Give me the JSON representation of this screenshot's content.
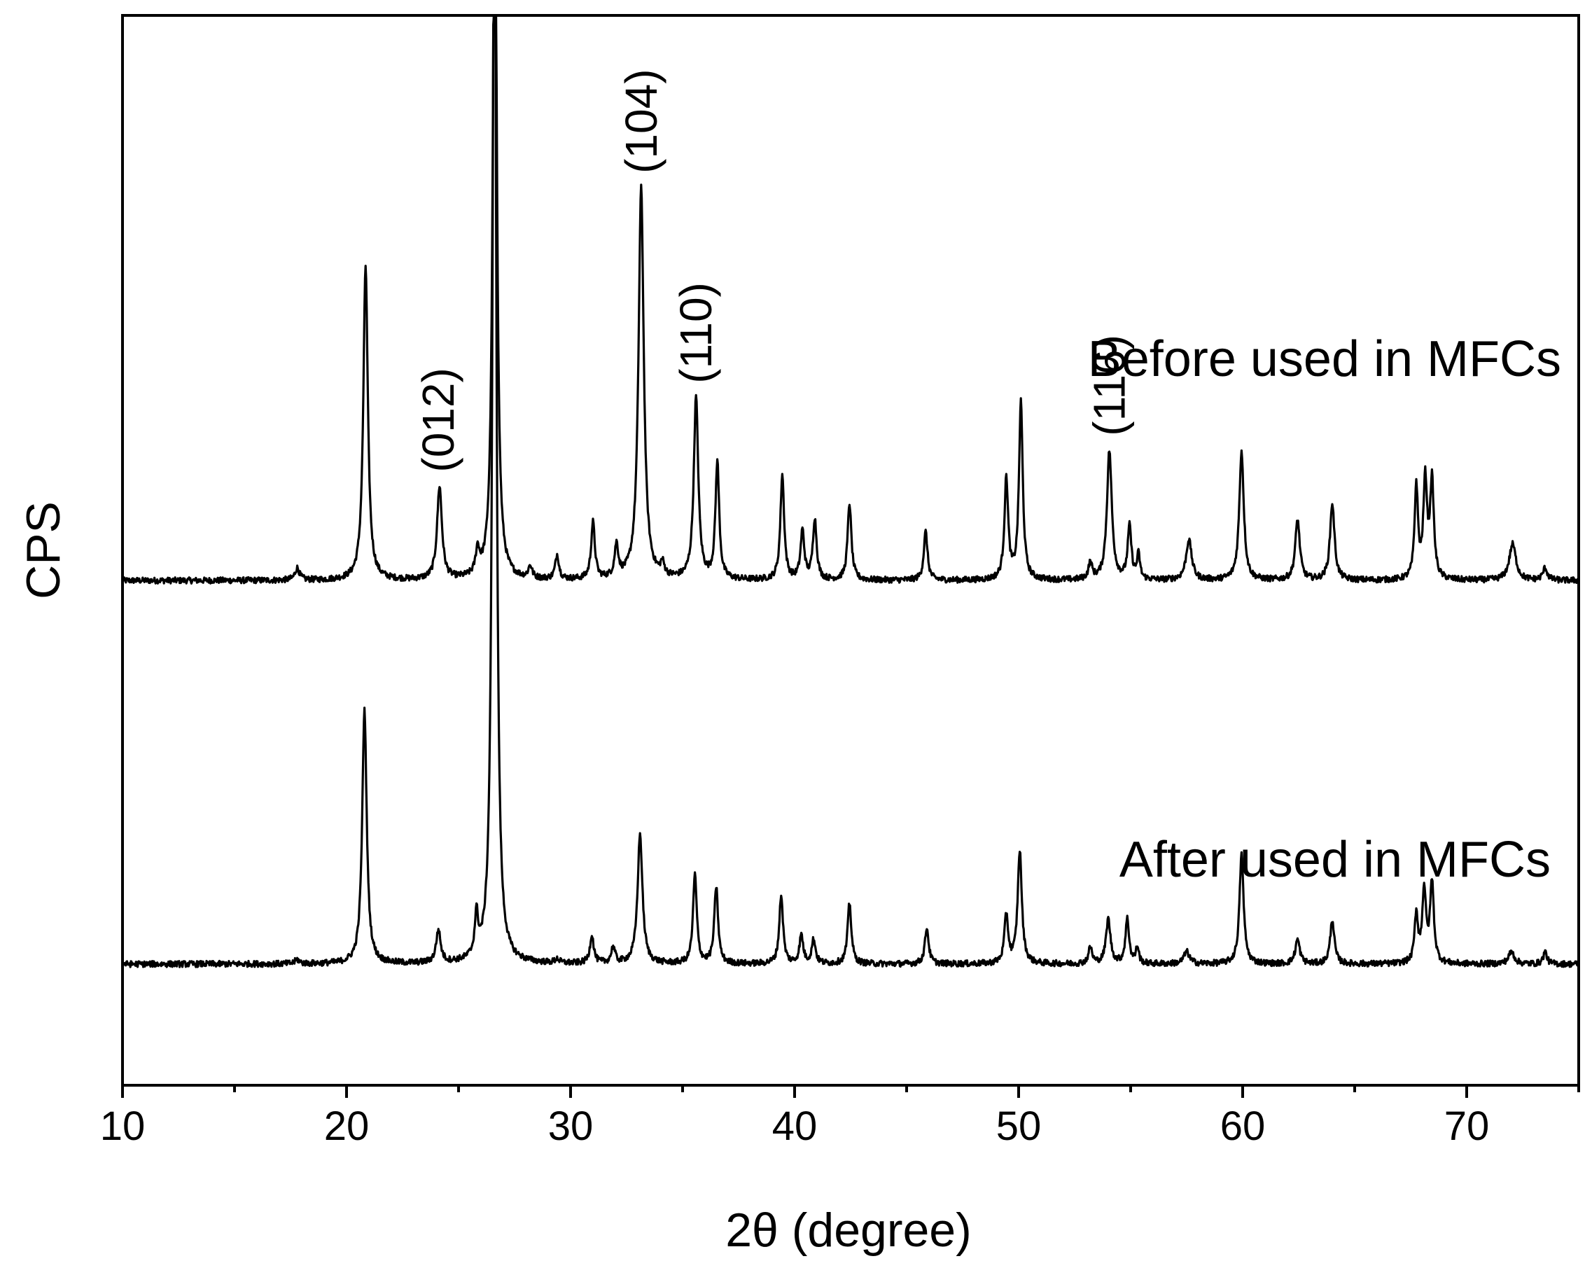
{
  "chart_data": {
    "type": "line",
    "xlabel": "2θ (degree)",
    "ylabel": "CPS",
    "xlim": [
      10,
      75
    ],
    "ylim": [
      -0.3,
      2.35
    ],
    "x_ticks": [
      10,
      20,
      30,
      40,
      50,
      60,
      70
    ],
    "x_minor_step": 5,
    "y_ticks_shown": false,
    "grid": false,
    "legend": "none",
    "series": [
      {
        "name": "Before used in MFCs",
        "offset": 0.95,
        "baseline": 0.0,
        "peaks": [
          {
            "x": 17.8,
            "h": 0.03,
            "w": 0.12
          },
          {
            "x": 20.85,
            "h": 0.78,
            "w": 0.12
          },
          {
            "x": 24.15,
            "h": 0.23,
            "w": 0.13
          },
          {
            "x": 25.85,
            "h": 0.06,
            "w": 0.1
          },
          {
            "x": 26.62,
            "h": 2.0,
            "w": 0.1
          },
          {
            "x": 28.2,
            "h": 0.03,
            "w": 0.1
          },
          {
            "x": 29.4,
            "h": 0.06,
            "w": 0.1
          },
          {
            "x": 31.0,
            "h": 0.14,
            "w": 0.1
          },
          {
            "x": 32.05,
            "h": 0.08,
            "w": 0.1
          },
          {
            "x": 33.15,
            "h": 0.97,
            "w": 0.14
          },
          {
            "x": 34.1,
            "h": 0.03,
            "w": 0.1
          },
          {
            "x": 35.6,
            "h": 0.45,
            "w": 0.12
          },
          {
            "x": 36.55,
            "h": 0.29,
            "w": 0.1
          },
          {
            "x": 39.45,
            "h": 0.26,
            "w": 0.1
          },
          {
            "x": 40.35,
            "h": 0.12,
            "w": 0.1
          },
          {
            "x": 40.9,
            "h": 0.15,
            "w": 0.1
          },
          {
            "x": 42.45,
            "h": 0.19,
            "w": 0.1
          },
          {
            "x": 45.85,
            "h": 0.12,
            "w": 0.1
          },
          {
            "x": 49.45,
            "h": 0.25,
            "w": 0.1
          },
          {
            "x": 50.1,
            "h": 0.44,
            "w": 0.1
          },
          {
            "x": 53.2,
            "h": 0.04,
            "w": 0.1
          },
          {
            "x": 54.05,
            "h": 0.32,
            "w": 0.13
          },
          {
            "x": 54.95,
            "h": 0.13,
            "w": 0.1
          },
          {
            "x": 55.35,
            "h": 0.06,
            "w": 0.08
          },
          {
            "x": 57.6,
            "h": 0.1,
            "w": 0.15
          },
          {
            "x": 59.95,
            "h": 0.32,
            "w": 0.12
          },
          {
            "x": 62.45,
            "h": 0.15,
            "w": 0.12
          },
          {
            "x": 64.0,
            "h": 0.19,
            "w": 0.12
          },
          {
            "x": 67.75,
            "h": 0.23,
            "w": 0.09
          },
          {
            "x": 68.15,
            "h": 0.24,
            "w": 0.1
          },
          {
            "x": 68.45,
            "h": 0.24,
            "w": 0.1
          },
          {
            "x": 72.05,
            "h": 0.09,
            "w": 0.18
          },
          {
            "x": 73.5,
            "h": 0.03,
            "w": 0.12
          }
        ]
      },
      {
        "name": "After used in MFCs",
        "offset": 0.0,
        "baseline": 0.0,
        "peaks": [
          {
            "x": 17.8,
            "h": 0.01,
            "w": 0.12
          },
          {
            "x": 20.8,
            "h": 0.63,
            "w": 0.12
          },
          {
            "x": 24.1,
            "h": 0.08,
            "w": 0.12
          },
          {
            "x": 25.8,
            "h": 0.1,
            "w": 0.09
          },
          {
            "x": 26.6,
            "h": 2.9,
            "w": 0.1
          },
          {
            "x": 29.4,
            "h": 0.01,
            "w": 0.1
          },
          {
            "x": 30.95,
            "h": 0.07,
            "w": 0.1
          },
          {
            "x": 31.9,
            "h": 0.04,
            "w": 0.1
          },
          {
            "x": 33.1,
            "h": 0.32,
            "w": 0.13
          },
          {
            "x": 35.55,
            "h": 0.22,
            "w": 0.1
          },
          {
            "x": 36.5,
            "h": 0.19,
            "w": 0.1
          },
          {
            "x": 39.4,
            "h": 0.17,
            "w": 0.1
          },
          {
            "x": 40.3,
            "h": 0.07,
            "w": 0.1
          },
          {
            "x": 40.85,
            "h": 0.06,
            "w": 0.1
          },
          {
            "x": 42.45,
            "h": 0.15,
            "w": 0.1
          },
          {
            "x": 45.9,
            "h": 0.09,
            "w": 0.1
          },
          {
            "x": 49.45,
            "h": 0.12,
            "w": 0.1
          },
          {
            "x": 50.05,
            "h": 0.28,
            "w": 0.11
          },
          {
            "x": 53.2,
            "h": 0.04,
            "w": 0.1
          },
          {
            "x": 54.0,
            "h": 0.11,
            "w": 0.12
          },
          {
            "x": 54.85,
            "h": 0.11,
            "w": 0.1
          },
          {
            "x": 55.3,
            "h": 0.04,
            "w": 0.08
          },
          {
            "x": 57.5,
            "h": 0.03,
            "w": 0.15
          },
          {
            "x": 59.95,
            "h": 0.27,
            "w": 0.11
          },
          {
            "x": 62.45,
            "h": 0.06,
            "w": 0.12
          },
          {
            "x": 64.0,
            "h": 0.11,
            "w": 0.11
          },
          {
            "x": 67.75,
            "h": 0.12,
            "w": 0.09
          },
          {
            "x": 68.1,
            "h": 0.18,
            "w": 0.1
          },
          {
            "x": 68.45,
            "h": 0.2,
            "w": 0.1
          },
          {
            "x": 72.0,
            "h": 0.03,
            "w": 0.16
          },
          {
            "x": 73.5,
            "h": 0.03,
            "w": 0.1
          }
        ]
      }
    ],
    "annotations": [
      {
        "text": "(012)",
        "x": 24.1,
        "series": 0
      },
      {
        "text": "(104)",
        "x": 33.15,
        "series": 0
      },
      {
        "text": "(110)",
        "x": 35.6,
        "series": 0
      },
      {
        "text": "(116)",
        "x": 54.05,
        "series": 0
      }
    ]
  }
}
